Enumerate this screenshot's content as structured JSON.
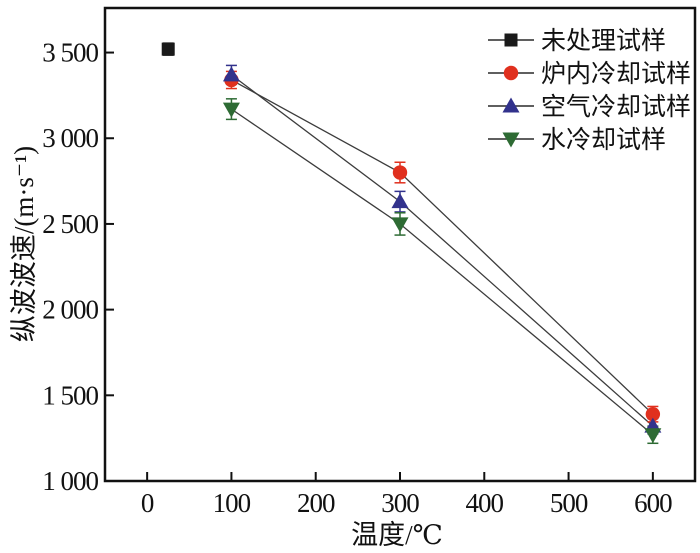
{
  "figure": {
    "background": "#ffffff",
    "frame_color": "#111111"
  },
  "chart_data": {
    "type": "scatter",
    "title": "",
    "xlabel": "温度/℃",
    "ylabel": "纵波波速/(m·s⁻¹)",
    "xlim": [
      -50,
      650
    ],
    "ylim": [
      1000,
      3760
    ],
    "xticks": [
      0,
      100,
      200,
      300,
      400,
      500,
      600
    ],
    "xtick_labels": [
      "0",
      "100",
      "200",
      "300",
      "400",
      "500",
      "600"
    ],
    "yticks": [
      1000,
      1500,
      2000,
      2500,
      3000,
      3500
    ],
    "ytick_labels": [
      "1 000",
      "1 500",
      "2 000",
      "2 500",
      "3 000",
      "3 500"
    ],
    "grid": false,
    "legend_position": "top-right",
    "connector_line_color": "#3c3c3c",
    "series": [
      {
        "name": "未处理试样",
        "marker": "square",
        "color": "#1a1a1a",
        "line": false,
        "points": [
          {
            "x": 25,
            "y": 3520,
            "err": 35
          }
        ]
      },
      {
        "name": "炉内冷却试样",
        "marker": "circle",
        "color": "#e0301e",
        "line": true,
        "points": [
          {
            "x": 100,
            "y": 3340,
            "err": 50
          },
          {
            "x": 300,
            "y": 2800,
            "err": 60
          },
          {
            "x": 600,
            "y": 1390,
            "err": 45
          }
        ]
      },
      {
        "name": "空气冷却试样",
        "marker": "triangle-up",
        "color": "#32328c",
        "line": true,
        "points": [
          {
            "x": 100,
            "y": 3370,
            "err": 55
          },
          {
            "x": 300,
            "y": 2630,
            "err": 60
          },
          {
            "x": 600,
            "y": 1320,
            "err": 45
          }
        ]
      },
      {
        "name": "水冷却试样",
        "marker": "triangle-down",
        "color": "#2e6b34",
        "line": true,
        "points": [
          {
            "x": 100,
            "y": 3170,
            "err": 60
          },
          {
            "x": 300,
            "y": 2500,
            "err": 65
          },
          {
            "x": 600,
            "y": 1270,
            "err": 50
          }
        ]
      }
    ]
  }
}
